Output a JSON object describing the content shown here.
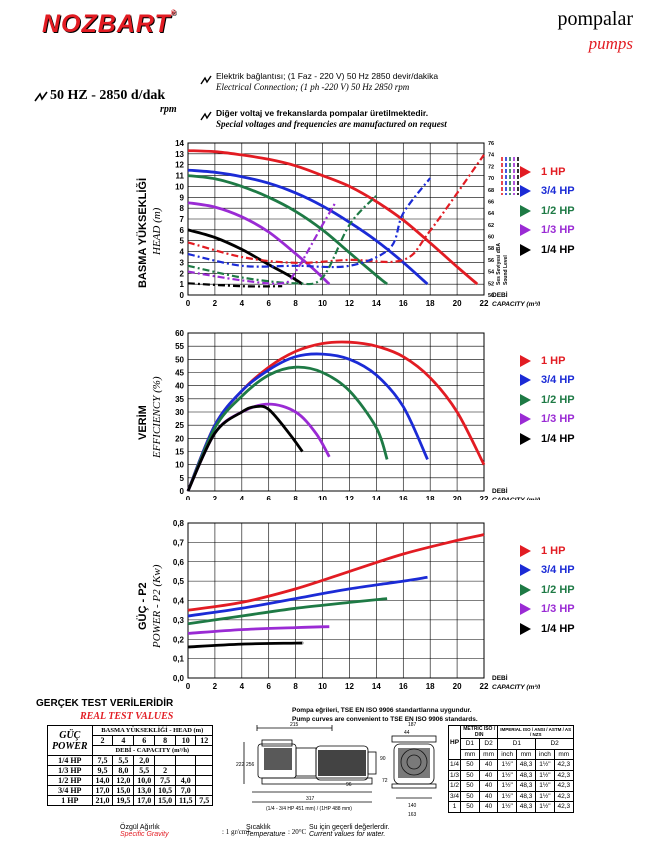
{
  "brand": {
    "name": "NOZBART",
    "reg": "®",
    "title_tr": "pompalar",
    "title_en": "pumps"
  },
  "specs": {
    "hz": "50 HZ - 2850 d/dak",
    "rpm": "rpm",
    "elec_tr": "Elektrik bağlantısı; (1 Faz - 220 V) 50 Hz 2850 devir/dakika",
    "elec_en": "Electrical Connection; (1 ph -220 V)  50 Hz 2850 rpm",
    "volt_tr": "Diğer voltaj ve frekanslarda pompalar üretilmektedir.",
    "volt_en": "Special voltages and frequencies  are manufactured on request"
  },
  "colors": {
    "1hp": "#e21c23",
    "3_4hp": "#1b2bd6",
    "1_2hp": "#1e7a45",
    "1_3hp": "#9a2bd4",
    "1_4hp": "#000000"
  },
  "legend": [
    "1 HP",
    "3/4 HP",
    "1/2 HP",
    "1/3 HP",
    "1/4 HP"
  ],
  "charts": {
    "head": {
      "ytitle_tr": "BASMA YÜKSEKLİĞİ",
      "ytitle_en": "HEAD (m)",
      "xlabel_tr": "DEBİ",
      "xlabel_en": "CAPACITY (m³/h)",
      "sound_tr": "Ses Seviyesi dBA",
      "sound_en": "Sound Level"
    },
    "eff": {
      "ytitle_tr": "VERİM",
      "ytitle_en": "EFFICIENCY (%)",
      "xlabel_tr": "DEBİ",
      "xlabel_en": "CAPACITY (m³/h)"
    },
    "power": {
      "ytitle_tr": "GÜÇ - P2",
      "ytitle_en": "POWER - P2 (Kw)",
      "xlabel_tr": "DEBİ",
      "xlabel_en": "CAPACITY (m³/h)"
    }
  },
  "chart_data": [
    {
      "type": "line",
      "title": "",
      "xlabel": "DEBİ CAPACITY (m³/h)",
      "ylabel": "BASMA YÜKSEKLİĞİ HEAD (m)",
      "xlim": [
        0,
        22
      ],
      "ylim": [
        0,
        14
      ],
      "y2lim": [
        50,
        76
      ],
      "y2label": "Ses Seviyesi dBA Sound Level",
      "series": [
        {
          "name": "1 HP",
          "x": [
            0,
            2,
            4,
            6,
            8,
            10,
            12,
            14,
            16,
            18,
            20,
            21.5
          ],
          "y": [
            13.3,
            13.2,
            12.9,
            12.5,
            11.9,
            11,
            10,
            8.6,
            6.9,
            4.8,
            2.6,
            1
          ]
        },
        {
          "name": "3/4 HP",
          "x": [
            0,
            2,
            4,
            6,
            8,
            10,
            12,
            14,
            16,
            17.8
          ],
          "y": [
            11.5,
            11.3,
            10.9,
            10.3,
            9.4,
            8.2,
            6.7,
            5,
            3,
            1
          ]
        },
        {
          "name": "1/2 HP",
          "x": [
            0,
            2,
            4,
            6,
            8,
            10,
            12,
            14,
            14.8
          ],
          "y": [
            11,
            10.7,
            10,
            9,
            7.7,
            6,
            3.9,
            1.8,
            1
          ]
        },
        {
          "name": "1/3 HP",
          "x": [
            0,
            2,
            4,
            6,
            8,
            9.5,
            10.5
          ],
          "y": [
            8.5,
            8.1,
            7.2,
            5.8,
            3.8,
            2.2,
            1
          ]
        },
        {
          "name": "1/4 HP",
          "x": [
            0,
            2,
            4,
            6,
            7.5,
            8.5
          ],
          "y": [
            6,
            5.3,
            4.2,
            2.8,
            1.8,
            1
          ]
        }
      ],
      "sound_series": [
        {
          "name": "1 HP",
          "x": [
            0,
            4,
            8,
            12,
            16,
            18,
            22
          ],
          "y": [
            59,
            56.5,
            55.5,
            56,
            56,
            61,
            74
          ]
        },
        {
          "name": "3/4 HP",
          "x": [
            0,
            4,
            8,
            12,
            15,
            16,
            18
          ],
          "y": [
            57,
            55,
            55,
            55,
            58,
            64,
            70
          ]
        },
        {
          "name": "1/2 HP",
          "x": [
            0,
            4,
            8,
            10,
            12,
            14
          ],
          "y": [
            55,
            53,
            52,
            53,
            62,
            67
          ]
        },
        {
          "name": "1/3 HP",
          "x": [
            0,
            4,
            7,
            8,
            10,
            11
          ],
          "y": [
            54,
            52.5,
            52,
            54,
            62,
            66
          ]
        },
        {
          "name": "1/4 HP",
          "x": [
            0,
            4,
            7
          ],
          "y": [
            52,
            51.5,
            51.5
          ]
        }
      ]
    },
    {
      "type": "line",
      "title": "",
      "xlabel": "DEBİ CAPACITY (m³/h)",
      "ylabel": "VERİM EFFICIENCY (%)",
      "xlim": [
        0,
        22
      ],
      "ylim": [
        0,
        60
      ],
      "series": [
        {
          "name": "1 HP",
          "x": [
            0,
            2,
            4,
            6,
            8,
            10,
            12,
            14,
            16,
            18,
            20,
            22
          ],
          "y": [
            0,
            25,
            38,
            47,
            53,
            56,
            56.5,
            55,
            51,
            43,
            30,
            10
          ]
        },
        {
          "name": "3/4 HP",
          "x": [
            0,
            2,
            4,
            6,
            8,
            10,
            12,
            14,
            16,
            17.8
          ],
          "y": [
            0,
            25,
            38,
            46,
            51,
            52,
            50,
            44,
            32,
            12
          ]
        },
        {
          "name": "1/2 HP",
          "x": [
            0,
            2,
            4,
            6,
            8,
            10,
            12,
            14,
            14.8
          ],
          "y": [
            0,
            24,
            36,
            44,
            47,
            45,
            38,
            24,
            12
          ]
        },
        {
          "name": "1/3 HP",
          "x": [
            0,
            2,
            4,
            6,
            8,
            9.5,
            10.5
          ],
          "y": [
            0,
            22,
            30,
            33,
            30,
            22,
            13
          ]
        },
        {
          "name": "1/4 HP",
          "x": [
            0,
            2,
            4,
            5,
            6,
            7.5,
            8.5
          ],
          "y": [
            0,
            22,
            30,
            32,
            31,
            22,
            15
          ]
        }
      ]
    },
    {
      "type": "line",
      "title": "",
      "xlabel": "DEBİ CAPACITY (m³/h)",
      "ylabel": "GÜÇ - P2 POWER - P2 (Kw)",
      "xlim": [
        0,
        22
      ],
      "ylim": [
        0,
        0.8
      ],
      "series": [
        {
          "name": "1 HP",
          "x": [
            0,
            4,
            8,
            12,
            16,
            20,
            22
          ],
          "y": [
            0.35,
            0.39,
            0.46,
            0.55,
            0.64,
            0.71,
            0.74
          ]
        },
        {
          "name": "3/4 HP",
          "x": [
            0,
            4,
            8,
            12,
            16,
            17.8
          ],
          "y": [
            0.32,
            0.36,
            0.41,
            0.46,
            0.5,
            0.52
          ]
        },
        {
          "name": "1/2 HP",
          "x": [
            0,
            4,
            8,
            12,
            14.8
          ],
          "y": [
            0.28,
            0.32,
            0.36,
            0.39,
            0.41
          ]
        },
        {
          "name": "1/3 HP",
          "x": [
            0,
            4,
            8,
            10.5
          ],
          "y": [
            0.23,
            0.25,
            0.26,
            0.265
          ]
        },
        {
          "name": "1/4 HP",
          "x": [
            0,
            4,
            8,
            8.5
          ],
          "y": [
            0.16,
            0.175,
            0.18,
            0.18
          ]
        }
      ]
    }
  ],
  "real_test": {
    "title_tr": "GERÇEK TEST VERİLERİDİR",
    "title_en": "REAL TEST VALUES",
    "col_head": "BASMA YÜKSEKLİĞİ - HEAD (m)",
    "guc": "GÜÇ",
    "power": "POWER",
    "debi": "DEBİ - CAPACITY (m³/h)",
    "heads": [
      "2",
      "4",
      "6",
      "8",
      "10",
      "12"
    ],
    "rows": [
      {
        "hp": "1/4 HP",
        "v": [
          "7,5",
          "5,5",
          "2,0",
          "",
          "",
          ""
        ]
      },
      {
        "hp": "1/3 HP",
        "v": [
          "9,5",
          "8,0",
          "5,5",
          "2",
          "",
          ""
        ]
      },
      {
        "hp": "1/2 HP",
        "v": [
          "14,0",
          "12,0",
          "10,0",
          "7,5",
          "4,0",
          ""
        ]
      },
      {
        "hp": "3/4 HP",
        "v": [
          "17,0",
          "15,0",
          "13,0",
          "10,5",
          "7,0",
          ""
        ]
      },
      {
        "hp": "1 HP",
        "v": [
          "21,0",
          "19,5",
          "17,0",
          "15,0",
          "11,5",
          "7,5"
        ]
      }
    ],
    "specific_gravity_tr": "Özgül Ağırlık",
    "specific_gravity_en": "Specific Gravity",
    "sg_val": ": 1 gr/cm³",
    "temp_tr": "Sıcaklık",
    "temp_en": "Temperature",
    "temp_val": ": 20°C",
    "water_tr": "Su için geçerli değerlerdir.",
    "water_en": "Current values for water."
  },
  "standards": {
    "tr": "Pompa eğrileri, TSE EN ISO 9906 standartlarına uygundur.",
    "en": "Pump curves are convenient to TSE EN ISO 9906 standards."
  },
  "drawing": {
    "d1": "215",
    "d2": "187",
    "d3": "44",
    "d4": "222",
    "d5": "256",
    "d6": "317",
    "d7": "140",
    "d8": "163",
    "d9": "90",
    "d10": "72",
    "d11": "96",
    "note": "(1/4 - 3/4 HP 451 mm) / (1HP 488 mm)",
    "d_top": "215",
    "d_top2": "187"
  },
  "dims_table": {
    "h_hp": "HP",
    "h_metric": "METRİC ISO / DIN",
    "h_imperial": "IMPERIAL ISO / ANSI / ASTM / AS / NZS",
    "h_d1": "D1",
    "h_d2": "D2",
    "u_mm": "mm",
    "u_inch": "inch",
    "rows": [
      {
        "hp": "1/4",
        "d1": "50",
        "d2": "40",
        "i1": "1½\"",
        "m1": "48,3",
        "i2": "1½\"",
        "m2": "42,3"
      },
      {
        "hp": "1/3",
        "d1": "50",
        "d2": "40",
        "i1": "1½\"",
        "m1": "48,3",
        "i2": "1½\"",
        "m2": "42,3"
      },
      {
        "hp": "1/2",
        "d1": "50",
        "d2": "40",
        "i1": "1½\"",
        "m1": "48,3",
        "i2": "1½\"",
        "m2": "42,3"
      },
      {
        "hp": "3/4",
        "d1": "50",
        "d2": "40",
        "i1": "1½\"",
        "m1": "48,3",
        "i2": "1½\"",
        "m2": "42,3"
      },
      {
        "hp": "1",
        "d1": "50",
        "d2": "40",
        "i1": "1½\"",
        "m1": "48,3",
        "i2": "1½\"",
        "m2": "42,3"
      }
    ]
  }
}
